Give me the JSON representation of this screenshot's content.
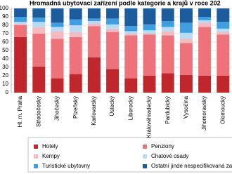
{
  "chart_data": {
    "type": "stacked_bar",
    "title": "Hromadná ubytovací zařízení podle kategorie a krajů v roce 202",
    "categories": [
      "Hl. m. Praha",
      "Středočeský",
      "Jihočeský",
      "Plzeňský",
      "Karlovarský",
      "Ústecký",
      "Liberecký",
      "Královéhradecký",
      "Pardubický",
      "Vysočina",
      "Jihomoravský",
      "Olomoucký"
    ],
    "series": [
      {
        "name": "Hotely",
        "color": "#c0272d",
        "values": [
          66,
          31,
          17,
          22,
          42,
          28,
          17,
          20,
          23,
          21,
          20,
          20
        ]
      },
      {
        "name": "Penziony",
        "color": "#ee7279",
        "values": [
          14,
          39,
          47,
          44,
          37,
          44,
          51,
          49,
          45,
          38,
          58,
          49
        ]
      },
      {
        "name": "Kempy",
        "color": "#f5b9c2",
        "values": [
          2,
          8,
          9,
          6,
          3,
          4,
          2,
          2,
          5,
          5,
          5,
          3
        ]
      },
      {
        "name": "Chatové osady",
        "color": "#b9daf2",
        "values": [
          2,
          6,
          5,
          8,
          3,
          5,
          3,
          3,
          5,
          7,
          3,
          4
        ]
      },
      {
        "name": "Turistické ubytovny",
        "color": "#3f9ee0",
        "values": [
          6,
          5,
          5,
          7,
          3,
          7,
          6,
          7,
          7,
          12,
          4,
          8
        ]
      },
      {
        "name": "Ostatní jinde nespecifikovaná zaříze",
        "color": "#1c5c9c",
        "values": [
          10,
          11,
          17,
          13,
          12,
          12,
          21,
          19,
          15,
          17,
          10,
          16
        ]
      }
    ],
    "ylim": [
      0,
      100
    ],
    "yticks": [
      0,
      10,
      20,
      30,
      40,
      50,
      60,
      70,
      80,
      90,
      100
    ],
    "grid": true
  }
}
